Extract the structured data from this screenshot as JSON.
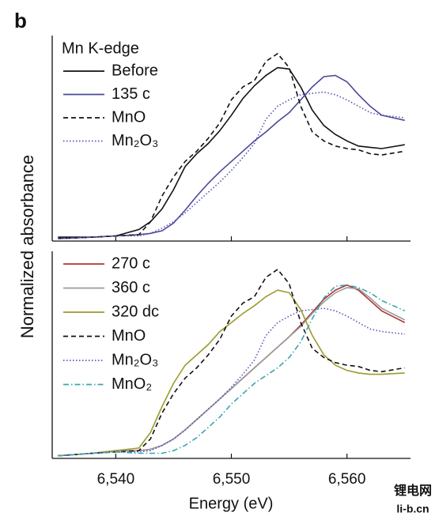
{
  "panel_label": "b",
  "ylabel": "Normalized absorbance",
  "xlabel": "Energy (eV)",
  "watermark": [
    "锂电网",
    "li-b.cn"
  ],
  "chart_data": [
    {
      "type": "line",
      "annotation": "Mn K-edge",
      "x": [
        6535,
        6538,
        6540,
        6542,
        6543,
        6544,
        6545,
        6546,
        6547,
        6548,
        6549,
        6550,
        6551,
        6552,
        6553,
        6554,
        6555,
        6556,
        6557,
        6558,
        6559,
        6560,
        6561,
        6562,
        6563,
        6565
      ],
      "xlim": [
        6534.5,
        6565.5
      ],
      "xticks": [
        6540,
        6550,
        6560
      ],
      "ylim": [
        0,
        1.6
      ],
      "series": [
        {
          "name": "Before",
          "color": "#111111",
          "dash": "solid",
          "values": [
            0.03,
            0.03,
            0.04,
            0.09,
            0.15,
            0.25,
            0.4,
            0.58,
            0.68,
            0.76,
            0.86,
            0.98,
            1.11,
            1.21,
            1.29,
            1.35,
            1.34,
            1.2,
            1.02,
            0.9,
            0.83,
            0.78,
            0.74,
            0.73,
            0.72,
            0.75
          ]
        },
        {
          "name": "135 c",
          "color": "#4b4a96",
          "dash": "solid",
          "values": [
            0.02,
            0.03,
            0.04,
            0.05,
            0.06,
            0.08,
            0.14,
            0.24,
            0.35,
            0.45,
            0.54,
            0.62,
            0.7,
            0.78,
            0.85,
            0.93,
            1.0,
            1.1,
            1.2,
            1.28,
            1.29,
            1.24,
            1.14,
            1.05,
            0.98,
            0.94
          ]
        },
        {
          "name": "MnO",
          "color": "#111111",
          "dash": "dashed",
          "values": [
            0.02,
            0.03,
            0.04,
            0.05,
            0.15,
            0.35,
            0.5,
            0.62,
            0.7,
            0.8,
            0.92,
            1.1,
            1.2,
            1.25,
            1.4,
            1.46,
            1.35,
            1.05,
            0.85,
            0.78,
            0.74,
            0.72,
            0.71,
            0.68,
            0.67,
            0.7
          ]
        },
        {
          "name": "Mn₂O₃",
          "color": "#5a52b8",
          "dash": "dotted",
          "values": [
            0.02,
            0.03,
            0.04,
            0.04,
            0.06,
            0.1,
            0.15,
            0.22,
            0.3,
            0.38,
            0.46,
            0.55,
            0.65,
            0.76,
            0.95,
            1.05,
            1.1,
            1.14,
            1.15,
            1.16,
            1.14,
            1.1,
            1.05,
            1.0,
            0.98,
            0.96
          ]
        }
      ]
    },
    {
      "type": "line",
      "x": [
        6535,
        6538,
        6540,
        6542,
        6543,
        6544,
        6545,
        6546,
        6547,
        6548,
        6549,
        6550,
        6551,
        6552,
        6553,
        6554,
        6555,
        6556,
        6557,
        6558,
        6559,
        6560,
        6561,
        6562,
        6563,
        6565
      ],
      "xlim": [
        6534.5,
        6565.5
      ],
      "xticks": [
        {
          "value": 6540,
          "label": "6,540"
        },
        {
          "value": 6550,
          "label": "6,550"
        },
        {
          "value": 6560,
          "label": "6,560"
        }
      ],
      "ylim": [
        0,
        1.6
      ],
      "series": [
        {
          "name": "270 c",
          "color": "#b03434",
          "dash": "solid",
          "values": [
            0.02,
            0.04,
            0.06,
            0.06,
            0.07,
            0.1,
            0.15,
            0.22,
            0.3,
            0.38,
            0.46,
            0.54,
            0.62,
            0.7,
            0.78,
            0.86,
            0.94,
            1.03,
            1.13,
            1.23,
            1.3,
            1.34,
            1.3,
            1.22,
            1.14,
            1.05
          ]
        },
        {
          "name": "360 c",
          "color": "#9a9a9a",
          "dash": "solid",
          "values": [
            0.02,
            0.04,
            0.06,
            0.06,
            0.07,
            0.1,
            0.15,
            0.22,
            0.3,
            0.38,
            0.46,
            0.54,
            0.62,
            0.7,
            0.78,
            0.86,
            0.94,
            1.02,
            1.12,
            1.21,
            1.28,
            1.32,
            1.31,
            1.24,
            1.16,
            1.07
          ]
        },
        {
          "name": "320 dc",
          "color": "#9c9a2c",
          "dash": "solid",
          "values": [
            0.02,
            0.04,
            0.06,
            0.08,
            0.2,
            0.4,
            0.58,
            0.72,
            0.8,
            0.88,
            0.98,
            1.05,
            1.12,
            1.18,
            1.25,
            1.3,
            1.28,
            1.15,
            0.95,
            0.8,
            0.72,
            0.68,
            0.66,
            0.65,
            0.65,
            0.66
          ]
        },
        {
          "name": "MnO",
          "color": "#111111",
          "dash": "dashed",
          "values": [
            0.02,
            0.04,
            0.05,
            0.06,
            0.15,
            0.35,
            0.5,
            0.62,
            0.7,
            0.8,
            0.92,
            1.1,
            1.2,
            1.25,
            1.4,
            1.46,
            1.35,
            1.05,
            0.85,
            0.78,
            0.74,
            0.72,
            0.71,
            0.68,
            0.67,
            0.7
          ]
        },
        {
          "name": "Mn₂O₃",
          "color": "#5a52b8",
          "dash": "dotted",
          "values": [
            0.02,
            0.04,
            0.05,
            0.05,
            0.06,
            0.1,
            0.15,
            0.22,
            0.3,
            0.38,
            0.46,
            0.55,
            0.65,
            0.76,
            0.95,
            1.05,
            1.1,
            1.14,
            1.15,
            1.16,
            1.14,
            1.1,
            1.05,
            1.0,
            0.98,
            0.96
          ]
        },
        {
          "name": "MnO₂",
          "color": "#3aa6ae",
          "dash": "dashdot",
          "values": [
            0.02,
            0.04,
            0.05,
            0.04,
            0.04,
            0.04,
            0.06,
            0.1,
            0.16,
            0.24,
            0.32,
            0.42,
            0.5,
            0.58,
            0.64,
            0.7,
            0.78,
            0.9,
            1.08,
            1.24,
            1.33,
            1.34,
            1.32,
            1.28,
            1.22,
            1.14
          ]
        }
      ]
    }
  ]
}
